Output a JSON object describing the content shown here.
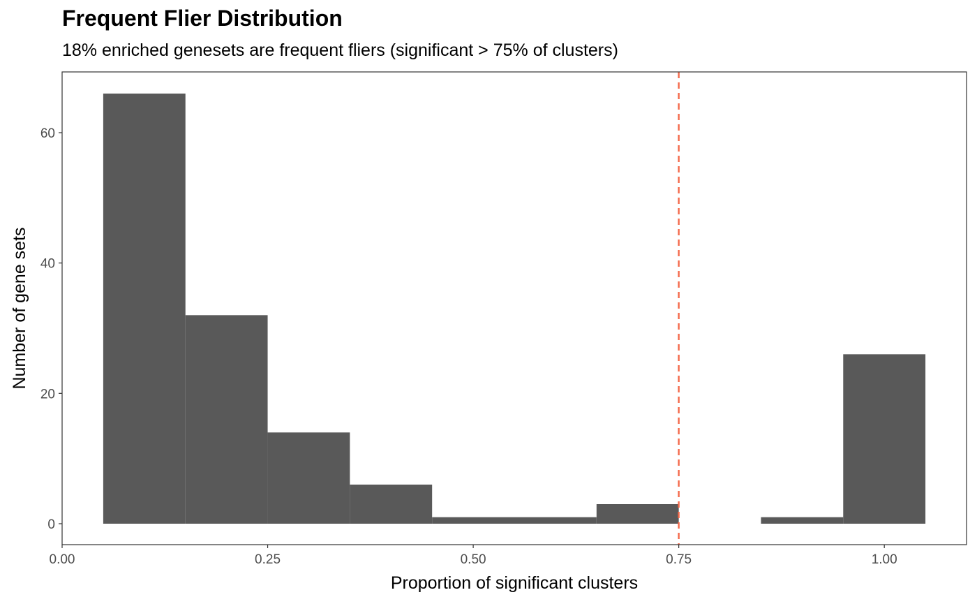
{
  "chart_data": {
    "type": "bar",
    "title": "Frequent Flier Distribution",
    "subtitle": "18% enriched genesets are frequent fliers (significant > 75% of clusters)",
    "xlabel": "Proportion of significant clusters",
    "ylabel": "Number of gene sets",
    "bins": [
      {
        "x0": 0.05,
        "x1": 0.15,
        "count": 66
      },
      {
        "x0": 0.15,
        "x1": 0.25,
        "count": 32
      },
      {
        "x0": 0.25,
        "x1": 0.35,
        "count": 14
      },
      {
        "x0": 0.35,
        "x1": 0.45,
        "count": 6
      },
      {
        "x0": 0.45,
        "x1": 0.55,
        "count": 1
      },
      {
        "x0": 0.55,
        "x1": 0.65,
        "count": 1
      },
      {
        "x0": 0.65,
        "x1": 0.75,
        "count": 3
      },
      {
        "x0": 0.75,
        "x1": 0.85,
        "count": 0
      },
      {
        "x0": 0.85,
        "x1": 0.95,
        "count": 1
      },
      {
        "x0": 0.95,
        "x1": 1.05,
        "count": 26
      }
    ],
    "xlim": [
      0.0,
      1.1
    ],
    "ylim": [
      0,
      69.3
    ],
    "xticks": [
      0.0,
      0.25,
      0.5,
      0.75,
      1.0
    ],
    "xtick_labels": [
      "0.00",
      "0.25",
      "0.50",
      "0.75",
      "1.00"
    ],
    "yticks": [
      0,
      20,
      40,
      60
    ],
    "ytick_labels": [
      "0",
      "20",
      "40",
      "60"
    ],
    "threshold": 0.75,
    "bar_color": "#595959",
    "threshold_color": "#f4694a",
    "grid": false,
    "legend": "none"
  }
}
